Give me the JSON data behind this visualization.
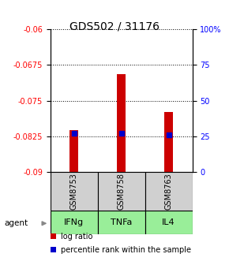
{
  "title": "GDS502 / 31176",
  "samples": [
    "GSM8753",
    "GSM8758",
    "GSM8763"
  ],
  "agents": [
    "IFNg",
    "TNFa",
    "IL4"
  ],
  "log_ratios": [
    -0.0812,
    -0.0695,
    -0.0773
  ],
  "percentile_ranks": [
    27,
    27,
    26
  ],
  "bar_base": -0.09,
  "ylim_left": [
    -0.09,
    -0.06
  ],
  "yticks_left": [
    -0.09,
    -0.0825,
    -0.075,
    -0.0675,
    -0.06
  ],
  "ytick_labels_left": [
    "-0.09",
    "-0.0825",
    "-0.075",
    "-0.0675",
    "-0.06"
  ],
  "ylim_right": [
    0,
    100
  ],
  "yticks_right": [
    0,
    25,
    50,
    75,
    100
  ],
  "ytick_labels_right": [
    "0",
    "25",
    "50",
    "75",
    "100%"
  ],
  "bar_color": "#cc0000",
  "percentile_color": "#0000cc",
  "agent_color": "#99ee99",
  "sample_box_color": "#d0d0d0",
  "legend_log_ratio": "log ratio",
  "legend_percentile": "percentile rank within the sample"
}
